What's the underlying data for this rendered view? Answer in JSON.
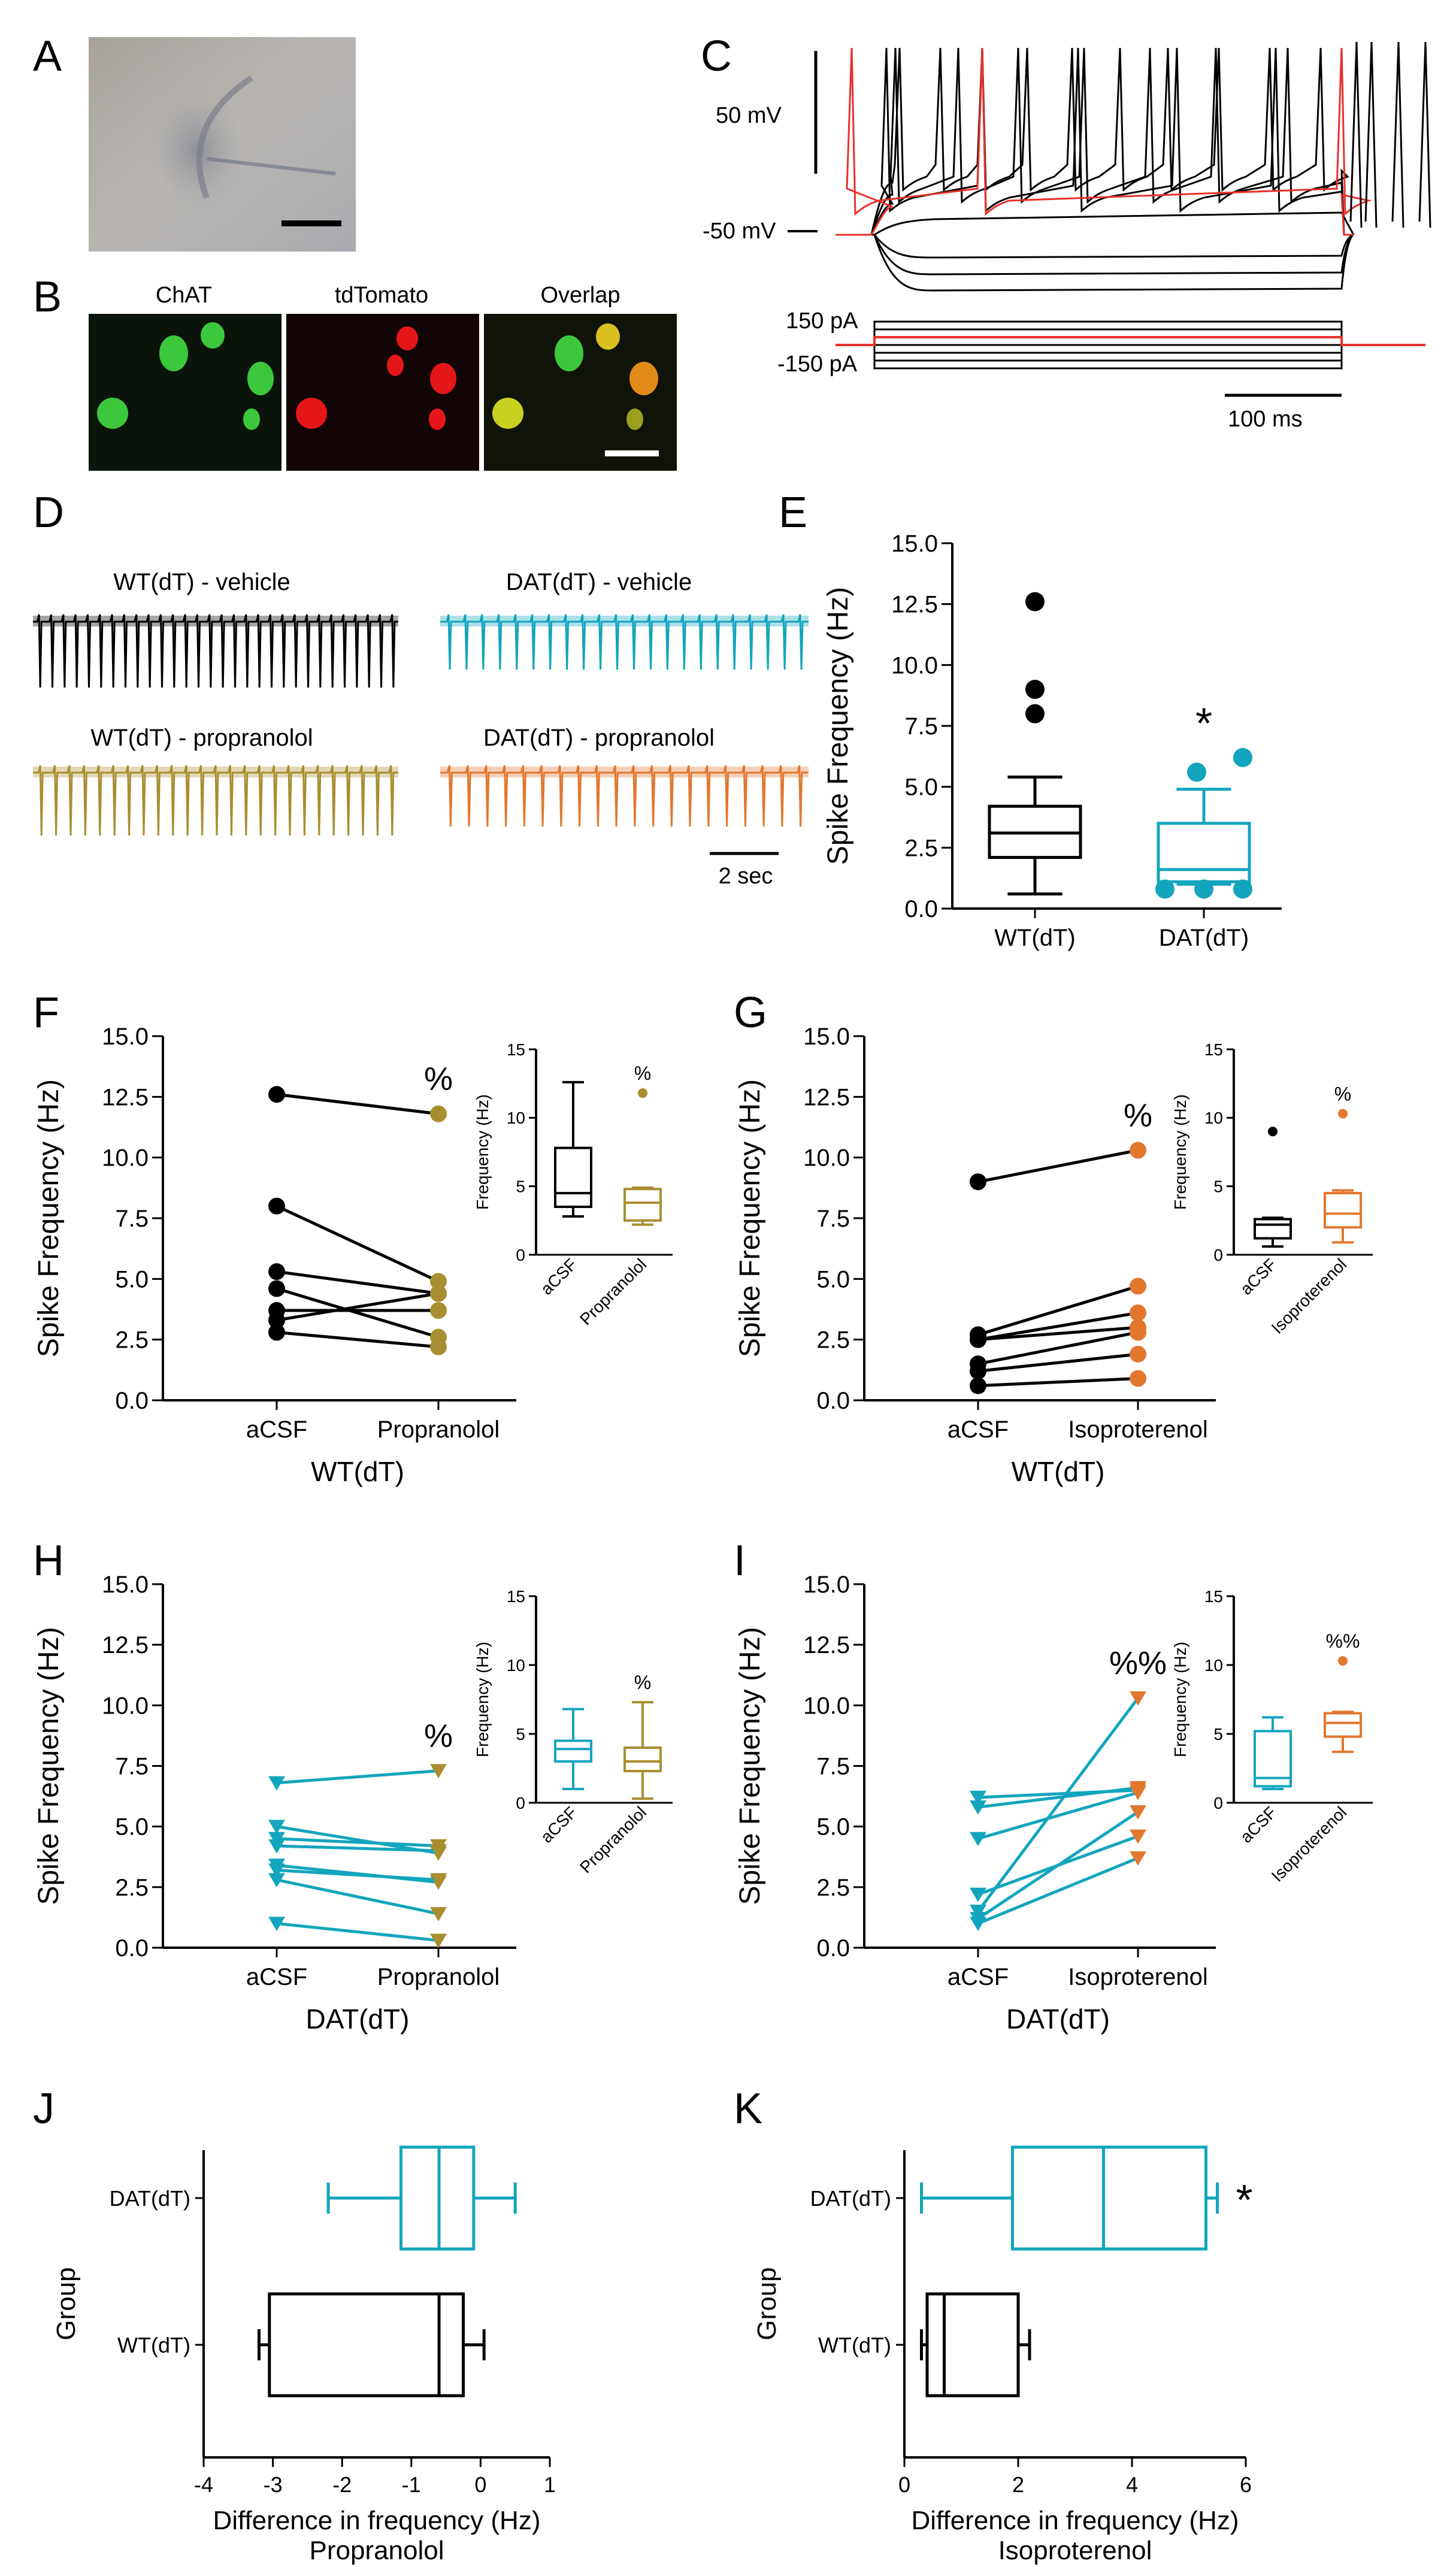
{
  "colors": {
    "black": "#000000",
    "red": "#e8312b",
    "teal": "#13a5bd",
    "olive": "#a88e30",
    "orange": "#e2772e",
    "green": "#2ec72e",
    "tdred": "#e5161a"
  },
  "panel_letters": [
    "A",
    "B",
    "C",
    "D",
    "E",
    "F",
    "G",
    "H",
    "I",
    "J",
    "K"
  ],
  "panelA": {
    "image_desc": "brightfield-micrograph"
  },
  "panelB": {
    "labels": [
      "ChAT",
      "tdTomato",
      "Overlap"
    ]
  },
  "panelC": {
    "scale_voltage": "50 mV",
    "rest_label": "-50 mV",
    "current_top": "150 pA",
    "current_bottom": "-150 pA",
    "scale_time": "100 ms"
  },
  "panelD": {
    "traces": [
      {
        "label": "WT(dT) - vehicle",
        "color": "#000000",
        "spikes": 30
      },
      {
        "label": "DAT(dT) - vehicle",
        "color": "#13a5bd",
        "spikes": 22
      },
      {
        "label": "WT(dT) - propranolol",
        "color": "#a88e30",
        "spikes": 25
      },
      {
        "label": "DAT(dT) - propranolol",
        "color": "#e2772e",
        "spikes": 20
      }
    ],
    "scale_time": "2 sec"
  },
  "chart_data": [
    {
      "id": "E",
      "type": "box",
      "ylabel": "Spike Frequency (Hz)",
      "ylim": [
        0,
        15
      ],
      "yticks": [
        "0.0",
        "2.5",
        "5.0",
        "7.5",
        "10.0",
        "12.5",
        "15.0"
      ],
      "categories": [
        "WT(dT)",
        "DAT(dT)"
      ],
      "boxes": [
        {
          "name": "WT(dT)",
          "color": "#000000",
          "whisker_low": 0.6,
          "q1": 2.1,
          "median": 3.1,
          "q3": 4.2,
          "whisker_high": 5.4,
          "outliers": [
            8.0,
            9.0,
            12.6
          ]
        },
        {
          "name": "DAT(dT)",
          "color": "#13a5bd",
          "whisker_low": 1.0,
          "q1": 1.1,
          "median": 1.6,
          "q3": 3.5,
          "whisker_high": 4.9,
          "outliers": [
            0.8,
            0.8,
            0.8,
            5.6,
            6.2
          ]
        }
      ],
      "annotation": "*"
    },
    {
      "id": "F",
      "type": "paired",
      "ylabel": "Spike Frequency (Hz)",
      "xlabel": "WT(dT)",
      "ylim": [
        0,
        15
      ],
      "yticks": [
        "0.0",
        "2.5",
        "5.0",
        "7.5",
        "10.0",
        "12.5",
        "15.0"
      ],
      "categories": [
        "aCSF",
        "Propranolol"
      ],
      "left_color": "#000000",
      "right_color": "#a88e30",
      "line_color": "#000000",
      "marker": "circle",
      "pairs": [
        [
          12.6,
          11.8
        ],
        [
          8.0,
          4.9
        ],
        [
          5.3,
          4.4
        ],
        [
          4.6,
          2.6
        ],
        [
          3.7,
          3.7
        ],
        [
          3.3,
          4.4
        ],
        [
          2.8,
          2.2
        ]
      ],
      "annotation": "%",
      "inset": {
        "ylabel": "Frequency (Hz)",
        "ylim": [
          0,
          15
        ],
        "yticks": [
          "0",
          "5",
          "10",
          "15"
        ],
        "categories": [
          "aCSF",
          "Propranolol"
        ],
        "boxes": [
          {
            "color": "#000000",
            "whisker_low": 2.8,
            "q1": 3.5,
            "median": 4.5,
            "q3": 7.8,
            "whisker_high": 12.6,
            "outliers": []
          },
          {
            "color": "#a88e30",
            "whisker_low": 2.2,
            "q1": 2.5,
            "median": 3.8,
            "q3": 4.8,
            "whisker_high": 4.9,
            "outliers": [
              11.8
            ]
          }
        ],
        "annotation": "%"
      }
    },
    {
      "id": "G",
      "type": "paired",
      "ylabel": "Spike Frequency (Hz)",
      "xlabel": "WT(dT)",
      "ylim": [
        0,
        15
      ],
      "yticks": [
        "0.0",
        "2.5",
        "5.0",
        "7.5",
        "10.0",
        "12.5",
        "15.0"
      ],
      "categories": [
        "aCSF",
        "Isoproterenol"
      ],
      "left_color": "#000000",
      "right_color": "#e2772e",
      "line_color": "#000000",
      "marker": "circle",
      "pairs": [
        [
          9.0,
          10.3
        ],
        [
          2.7,
          4.7
        ],
        [
          2.5,
          3.6
        ],
        [
          2.5,
          3.0
        ],
        [
          1.5,
          2.8
        ],
        [
          1.2,
          1.9
        ],
        [
          0.6,
          0.9
        ]
      ],
      "annotation": "%",
      "inset": {
        "ylabel": "Frequency (Hz)",
        "ylim": [
          0,
          15
        ],
        "yticks": [
          "0",
          "5",
          "10",
          "15"
        ],
        "categories": [
          "aCSF",
          "Isoproterenol"
        ],
        "boxes": [
          {
            "color": "#000000",
            "whisker_low": 0.6,
            "q1": 1.2,
            "median": 2.2,
            "q3": 2.6,
            "whisker_high": 2.7,
            "outliers": [
              9.0
            ]
          },
          {
            "color": "#e2772e",
            "whisker_low": 0.9,
            "q1": 2.0,
            "median": 3.0,
            "q3": 4.5,
            "whisker_high": 4.7,
            "outliers": [
              10.3
            ]
          }
        ],
        "annotation": "%"
      }
    },
    {
      "id": "H",
      "type": "paired",
      "ylabel": "Spike Frequency (Hz)",
      "xlabel": "DAT(dT)",
      "ylim": [
        0,
        15
      ],
      "yticks": [
        "0.0",
        "2.5",
        "5.0",
        "7.5",
        "10.0",
        "12.5",
        "15.0"
      ],
      "categories": [
        "aCSF",
        "Propranolol"
      ],
      "left_color": "#13a5bd",
      "right_color": "#a88e30",
      "line_color": "#13a5bd",
      "marker": "triangle",
      "pairs": [
        [
          6.8,
          7.3
        ],
        [
          5.0,
          3.9
        ],
        [
          4.5,
          4.2
        ],
        [
          4.2,
          4.0
        ],
        [
          3.4,
          2.7
        ],
        [
          3.2,
          2.8
        ],
        [
          2.8,
          1.4
        ],
        [
          1.0,
          0.3
        ]
      ],
      "annotation": "%",
      "inset": {
        "ylabel": "Frequency (Hz)",
        "ylim": [
          0,
          15
        ],
        "yticks": [
          "0",
          "5",
          "10",
          "15"
        ],
        "categories": [
          "aCSF",
          "Propranolol"
        ],
        "boxes": [
          {
            "color": "#13a5bd",
            "whisker_low": 1.0,
            "q1": 3.0,
            "median": 3.9,
            "q3": 4.5,
            "whisker_high": 6.8,
            "outliers": []
          },
          {
            "color": "#a88e30",
            "whisker_low": 0.3,
            "q1": 2.3,
            "median": 3.0,
            "q3": 4.0,
            "whisker_high": 7.3,
            "outliers": []
          }
        ],
        "annotation": "%"
      }
    },
    {
      "id": "I",
      "type": "paired",
      "ylabel": "Spike Frequency (Hz)",
      "xlabel": "DAT(dT)",
      "ylim": [
        0,
        15
      ],
      "yticks": [
        "0.0",
        "2.5",
        "5.0",
        "7.5",
        "10.0",
        "12.5",
        "15.0"
      ],
      "categories": [
        "aCSF",
        "Isoproterenol"
      ],
      "left_color": "#13a5bd",
      "right_color": "#e2772e",
      "line_color": "#13a5bd",
      "marker": "triangle",
      "pairs": [
        [
          6.2,
          6.5
        ],
        [
          5.8,
          6.6
        ],
        [
          4.5,
          6.4
        ],
        [
          2.2,
          4.6
        ],
        [
          1.5,
          10.3
        ],
        [
          1.2,
          5.6
        ],
        [
          1.0,
          3.7
        ]
      ],
      "annotation": "%%",
      "inset": {
        "ylabel": "Frequency (Hz)",
        "ylim": [
          0,
          15
        ],
        "yticks": [
          "0",
          "5",
          "10",
          "15"
        ],
        "categories": [
          "aCSF",
          "Isoproterenol"
        ],
        "boxes": [
          {
            "color": "#13a5bd",
            "whisker_low": 1.0,
            "q1": 1.2,
            "median": 1.8,
            "q3": 5.2,
            "whisker_high": 6.2,
            "outliers": []
          },
          {
            "color": "#e2772e",
            "whisker_low": 3.7,
            "q1": 4.8,
            "median": 5.8,
            "q3": 6.5,
            "whisker_high": 6.6,
            "outliers": [
              10.3
            ]
          }
        ],
        "annotation": "%%"
      }
    },
    {
      "id": "J",
      "type": "horizontal_box",
      "ylabel": "Group",
      "xlabel": "Difference in frequency (Hz)",
      "xlabel2": "Propranolol",
      "xlim": [
        -4,
        1
      ],
      "xticks": [
        "-4",
        "-3",
        "-2",
        "-1",
        "0",
        "1"
      ],
      "categories": [
        "DAT(dT)",
        "WT(dT)"
      ],
      "boxes": [
        {
          "name": "DAT(dT)",
          "color": "#13a5bd",
          "whisker_low": -2.2,
          "q1": -1.15,
          "median": -0.6,
          "q3": -0.1,
          "whisker_high": 0.5
        },
        {
          "name": "WT(dT)",
          "color": "#000000",
          "whisker_low": -3.2,
          "q1": -3.05,
          "median": -0.6,
          "q3": -0.25,
          "whisker_high": 0.05
        }
      ]
    },
    {
      "id": "K",
      "type": "horizontal_box",
      "ylabel": "Group",
      "xlabel": "Difference in frequency (Hz)",
      "xlabel2": "Isoproterenol",
      "xlim": [
        0,
        6
      ],
      "xticks": [
        "0",
        "2",
        "4",
        "6"
      ],
      "categories": [
        "DAT(dT)",
        "WT(dT)"
      ],
      "boxes": [
        {
          "name": "DAT(dT)",
          "color": "#13a5bd",
          "whisker_low": 0.3,
          "q1": 1.9,
          "median": 3.5,
          "q3": 5.3,
          "whisker_high": 5.5
        },
        {
          "name": "WT(dT)",
          "color": "#000000",
          "whisker_low": 0.3,
          "q1": 0.4,
          "median": 0.7,
          "q3": 2.0,
          "whisker_high": 2.2
        }
      ],
      "annotation": "*"
    }
  ]
}
